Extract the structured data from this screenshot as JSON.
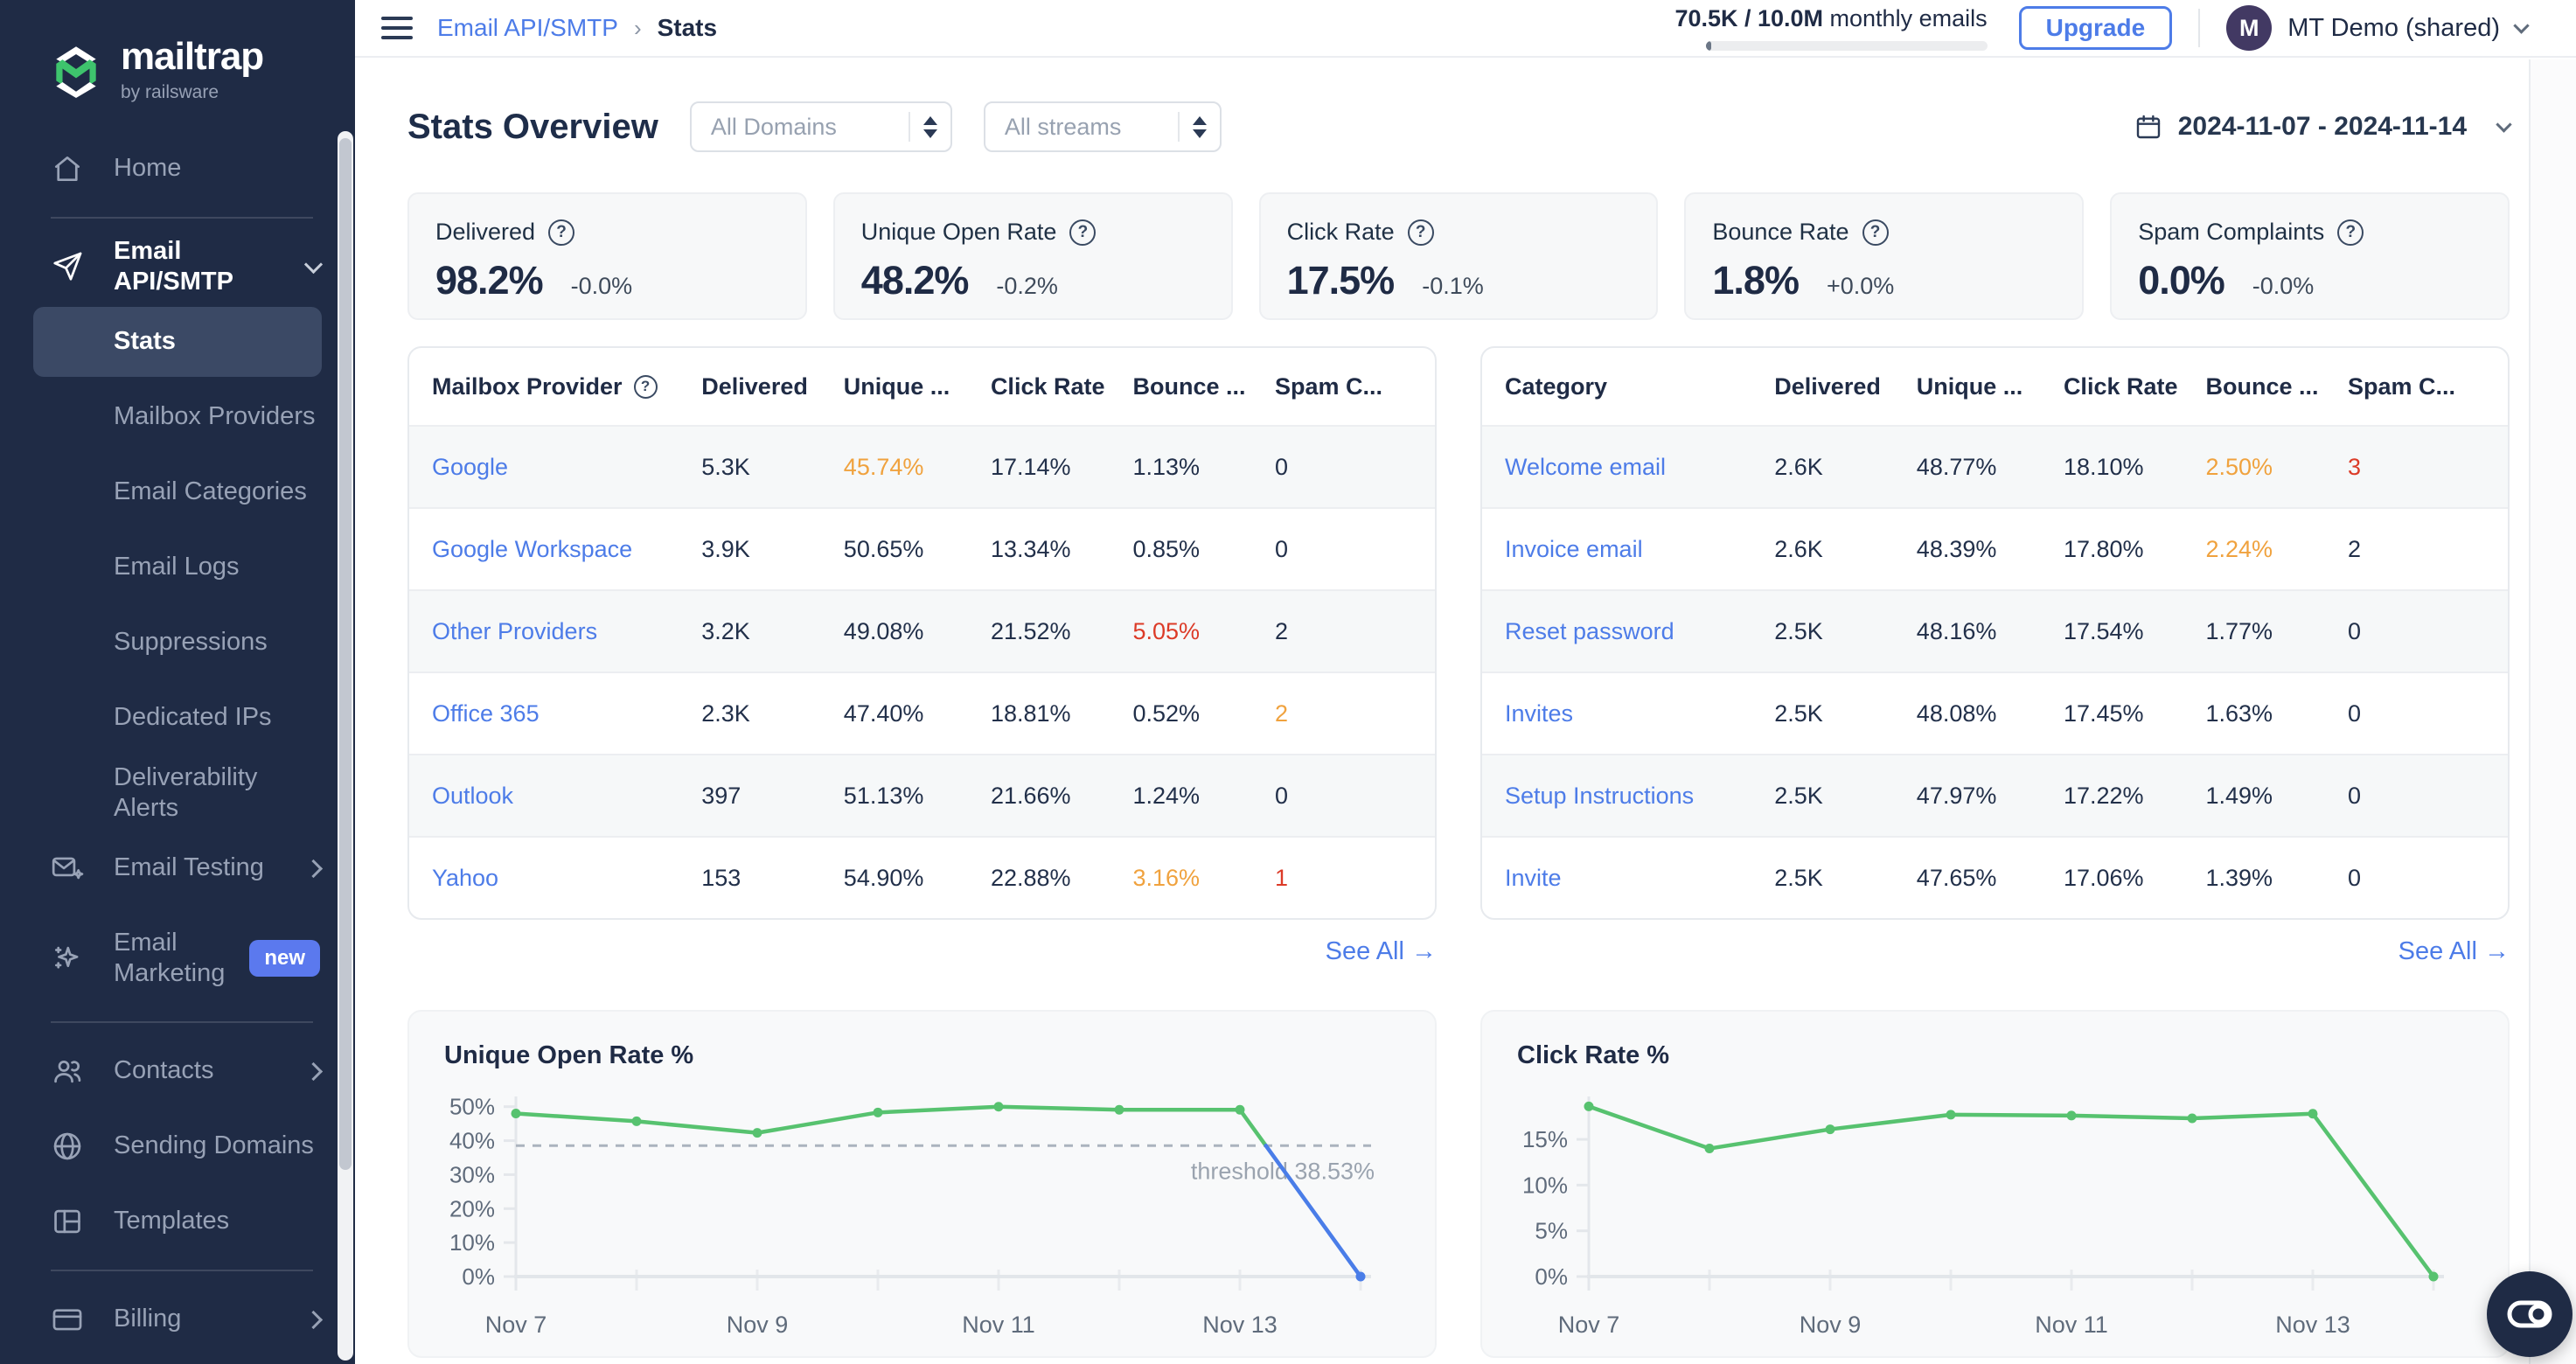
{
  "theme": {
    "accent": "#4D7CE8",
    "warn": "#F0A23E",
    "bad": "#DC3B28",
    "green": "#57C26F",
    "below_threshold_blue": "#4A7DE8",
    "navy": "#1F2B45",
    "badge_blue": "#5B79EE",
    "logo_green": "#3EC46D"
  },
  "brand": {
    "name": "mailtrap",
    "byline": "by railsware"
  },
  "topbar": {
    "breadcrumb": [
      {
        "label": "Email API/SMTP"
      },
      {
        "label": "Stats"
      }
    ],
    "usage": {
      "bold": "70.5K / 10.0M",
      "rest": " monthly emails",
      "progress_pct": 0.7
    },
    "upgrade_label": "Upgrade",
    "account": {
      "initial": "M",
      "name": "MT Demo (shared)"
    }
  },
  "sidebar": {
    "groups": [
      {
        "items": [
          {
            "label": "Home",
            "icon": "home"
          }
        ]
      },
      {
        "items": [
          {
            "label": "Email API/SMTP",
            "icon": "send",
            "section": true,
            "chevron": "down"
          },
          {
            "label": "Stats",
            "sub": true,
            "active": true
          },
          {
            "label": "Mailbox Providers",
            "sub": true
          },
          {
            "label": "Email Categories",
            "sub": true
          },
          {
            "label": "Email Logs",
            "sub": true
          },
          {
            "label": "Suppressions",
            "sub": true
          },
          {
            "label": "Dedicated IPs",
            "sub": true
          },
          {
            "label": "Deliverability Alerts",
            "sub": true
          },
          {
            "label": "Email Testing",
            "icon": "email-testing",
            "chevron": "right"
          },
          {
            "label": "Email Marketing",
            "icon": "sparkles",
            "badge": "new",
            "twoline": true
          }
        ]
      },
      {
        "items": [
          {
            "label": "Contacts",
            "icon": "contacts",
            "chevron": "right"
          },
          {
            "label": "Sending Domains",
            "icon": "globe"
          },
          {
            "label": "Templates",
            "icon": "templates"
          }
        ]
      },
      {
        "items": [
          {
            "label": "Billing",
            "icon": "billing",
            "chevron": "right"
          }
        ]
      }
    ]
  },
  "page": {
    "title": "Stats Overview",
    "filters": [
      {
        "value": "All Domains"
      },
      {
        "value": "All streams"
      }
    ],
    "date_range": "2024-11-07 - 2024-11-14"
  },
  "kpis": [
    {
      "label": "Delivered",
      "value": "98.2%",
      "delta": "-0.0%"
    },
    {
      "label": "Unique Open Rate",
      "value": "48.2%",
      "delta": "-0.2%"
    },
    {
      "label": "Click Rate",
      "value": "17.5%",
      "delta": "-0.1%"
    },
    {
      "label": "Bounce Rate",
      "value": "1.8%",
      "delta": "+0.0%"
    },
    {
      "label": "Spam Complaints",
      "value": "0.0%",
      "delta": "-0.0%"
    }
  ],
  "tables": [
    {
      "headers": [
        "Mailbox Provider",
        "Delivered",
        "Unique ...",
        "Click Rate",
        "Bounce ...",
        "Spam C..."
      ],
      "header_help": true,
      "rows": [
        {
          "name": "Google",
          "cells": [
            {
              "t": "5.3K"
            },
            {
              "t": "45.74%",
              "c": "warn"
            },
            {
              "t": "17.14%"
            },
            {
              "t": "1.13%"
            },
            {
              "t": "0"
            }
          ]
        },
        {
          "name": "Google Workspace",
          "cells": [
            {
              "t": "3.9K"
            },
            {
              "t": "50.65%"
            },
            {
              "t": "13.34%"
            },
            {
              "t": "0.85%"
            },
            {
              "t": "0"
            }
          ]
        },
        {
          "name": "Other Providers",
          "cells": [
            {
              "t": "3.2K"
            },
            {
              "t": "49.08%"
            },
            {
              "t": "21.52%"
            },
            {
              "t": "5.05%",
              "c": "bad"
            },
            {
              "t": "2"
            }
          ]
        },
        {
          "name": "Office 365",
          "cells": [
            {
              "t": "2.3K"
            },
            {
              "t": "47.40%"
            },
            {
              "t": "18.81%"
            },
            {
              "t": "0.52%"
            },
            {
              "t": "2",
              "c": "warn"
            }
          ]
        },
        {
          "name": "Outlook",
          "cells": [
            {
              "t": "397"
            },
            {
              "t": "51.13%"
            },
            {
              "t": "21.66%"
            },
            {
              "t": "1.24%"
            },
            {
              "t": "0"
            }
          ]
        },
        {
          "name": "Yahoo",
          "cells": [
            {
              "t": "153"
            },
            {
              "t": "54.90%"
            },
            {
              "t": "22.88%"
            },
            {
              "t": "3.16%",
              "c": "warn"
            },
            {
              "t": "1",
              "c": "bad"
            }
          ]
        }
      ],
      "see_all": "See All →"
    },
    {
      "headers": [
        "Category",
        "Delivered",
        "Unique ...",
        "Click Rate",
        "Bounce ...",
        "Spam C..."
      ],
      "header_help": false,
      "rows": [
        {
          "name": "Welcome email",
          "cells": [
            {
              "t": "2.6K"
            },
            {
              "t": "48.77%"
            },
            {
              "t": "18.10%"
            },
            {
              "t": "2.50%",
              "c": "warn"
            },
            {
              "t": "3",
              "c": "bad"
            }
          ]
        },
        {
          "name": "Invoice email",
          "cells": [
            {
              "t": "2.6K"
            },
            {
              "t": "48.39%"
            },
            {
              "t": "17.80%"
            },
            {
              "t": "2.24%",
              "c": "warn"
            },
            {
              "t": "2"
            }
          ]
        },
        {
          "name": "Reset password",
          "cells": [
            {
              "t": "2.5K"
            },
            {
              "t": "48.16%"
            },
            {
              "t": "17.54%"
            },
            {
              "t": "1.77%"
            },
            {
              "t": "0"
            }
          ]
        },
        {
          "name": "Invites",
          "cells": [
            {
              "t": "2.5K"
            },
            {
              "t": "48.08%"
            },
            {
              "t": "17.45%"
            },
            {
              "t": "1.63%"
            },
            {
              "t": "0"
            }
          ]
        },
        {
          "name": "Setup Instructions",
          "cells": [
            {
              "t": "2.5K"
            },
            {
              "t": "47.97%"
            },
            {
              "t": "17.22%"
            },
            {
              "t": "1.49%"
            },
            {
              "t": "0"
            }
          ]
        },
        {
          "name": "Invite",
          "cells": [
            {
              "t": "2.5K"
            },
            {
              "t": "47.65%"
            },
            {
              "t": "17.06%"
            },
            {
              "t": "1.39%"
            },
            {
              "t": "0"
            }
          ]
        }
      ],
      "see_all": "See All →"
    }
  ],
  "chart_data": [
    {
      "type": "line",
      "title": "Unique Open Rate %",
      "x": [
        "Nov 7",
        "Nov 8",
        "Nov 9",
        "Nov 10",
        "Nov 11",
        "Nov 12",
        "Nov 13",
        "Nov 14"
      ],
      "values": [
        48,
        45.7,
        42.3,
        48.3,
        50,
        49.1,
        49.1,
        0
      ],
      "yticks": [
        0,
        10,
        20,
        30,
        40,
        50
      ],
      "ylim": [
        0,
        52.5
      ],
      "xtick_every": 2,
      "threshold": 38.53,
      "threshold_label": "threshold 38.53%",
      "line_color": "#57C26F",
      "below_threshold_color": "#4A7DE8",
      "grid": false,
      "legend": "none"
    },
    {
      "type": "line",
      "title": "Click Rate %",
      "x": [
        "Nov 7",
        "Nov 8",
        "Nov 9",
        "Nov 10",
        "Nov 11",
        "Nov 12",
        "Nov 13",
        "Nov 14"
      ],
      "values": [
        18.6,
        14,
        16.1,
        17.7,
        17.6,
        17.3,
        17.8,
        0
      ],
      "yticks": [
        0,
        5,
        10,
        15
      ],
      "ylim": [
        0,
        19.5
      ],
      "xtick_every": 2,
      "line_color": "#57C26F",
      "grid": false,
      "legend": "none"
    }
  ],
  "chat_widget": {
    "icon": "toggle-pill"
  }
}
